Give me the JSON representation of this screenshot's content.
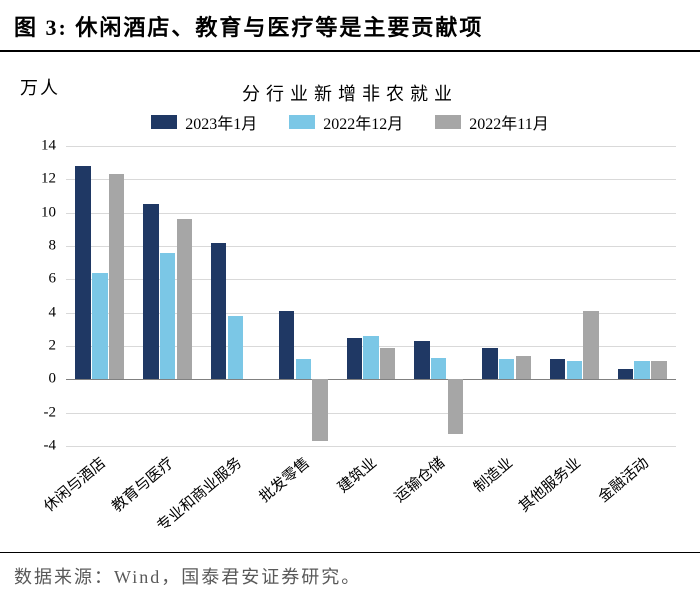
{
  "figure": {
    "title_prefix": "图 3:",
    "title_text": "休闲酒店、教育与医疗等是主要贡献项",
    "y_axis_unit": "万人",
    "subtitle": "分行业新增非农就业",
    "source_label": "数据来源：",
    "source_text": "Wind，国泰君安证券研究。"
  },
  "chart": {
    "type": "bar",
    "ylim": [
      -4,
      14
    ],
    "ytick_step": 2,
    "yticks": [
      -4,
      -2,
      0,
      2,
      4,
      6,
      8,
      10,
      12,
      14
    ],
    "grid_color": "#d9d9d9",
    "axis_color": "#808080",
    "background_color": "#ffffff",
    "bar_group_width": 0.72,
    "bar_gap": 0.02,
    "label_fontsize": 15,
    "series": [
      {
        "name": "2023年1月",
        "color": "#1f3864"
      },
      {
        "name": "2022年12月",
        "color": "#7bc7e6"
      },
      {
        "name": "2022年11月",
        "color": "#a6a6a6"
      }
    ],
    "categories": [
      "休闲与酒店",
      "教育与医疗",
      "专业和商业服务",
      "批发零售",
      "建筑业",
      "运输仓储",
      "制造业",
      "其他服务业",
      "金融活动"
    ],
    "values": [
      [
        12.8,
        10.5,
        8.2,
        4.1,
        2.5,
        2.3,
        1.9,
        1.2,
        0.6
      ],
      [
        6.4,
        7.6,
        3.8,
        1.2,
        2.6,
        1.3,
        1.2,
        1.1,
        1.1
      ],
      [
        12.3,
        9.6,
        0.0,
        -3.7,
        1.9,
        -3.3,
        1.4,
        4.1,
        1.1
      ]
    ]
  }
}
